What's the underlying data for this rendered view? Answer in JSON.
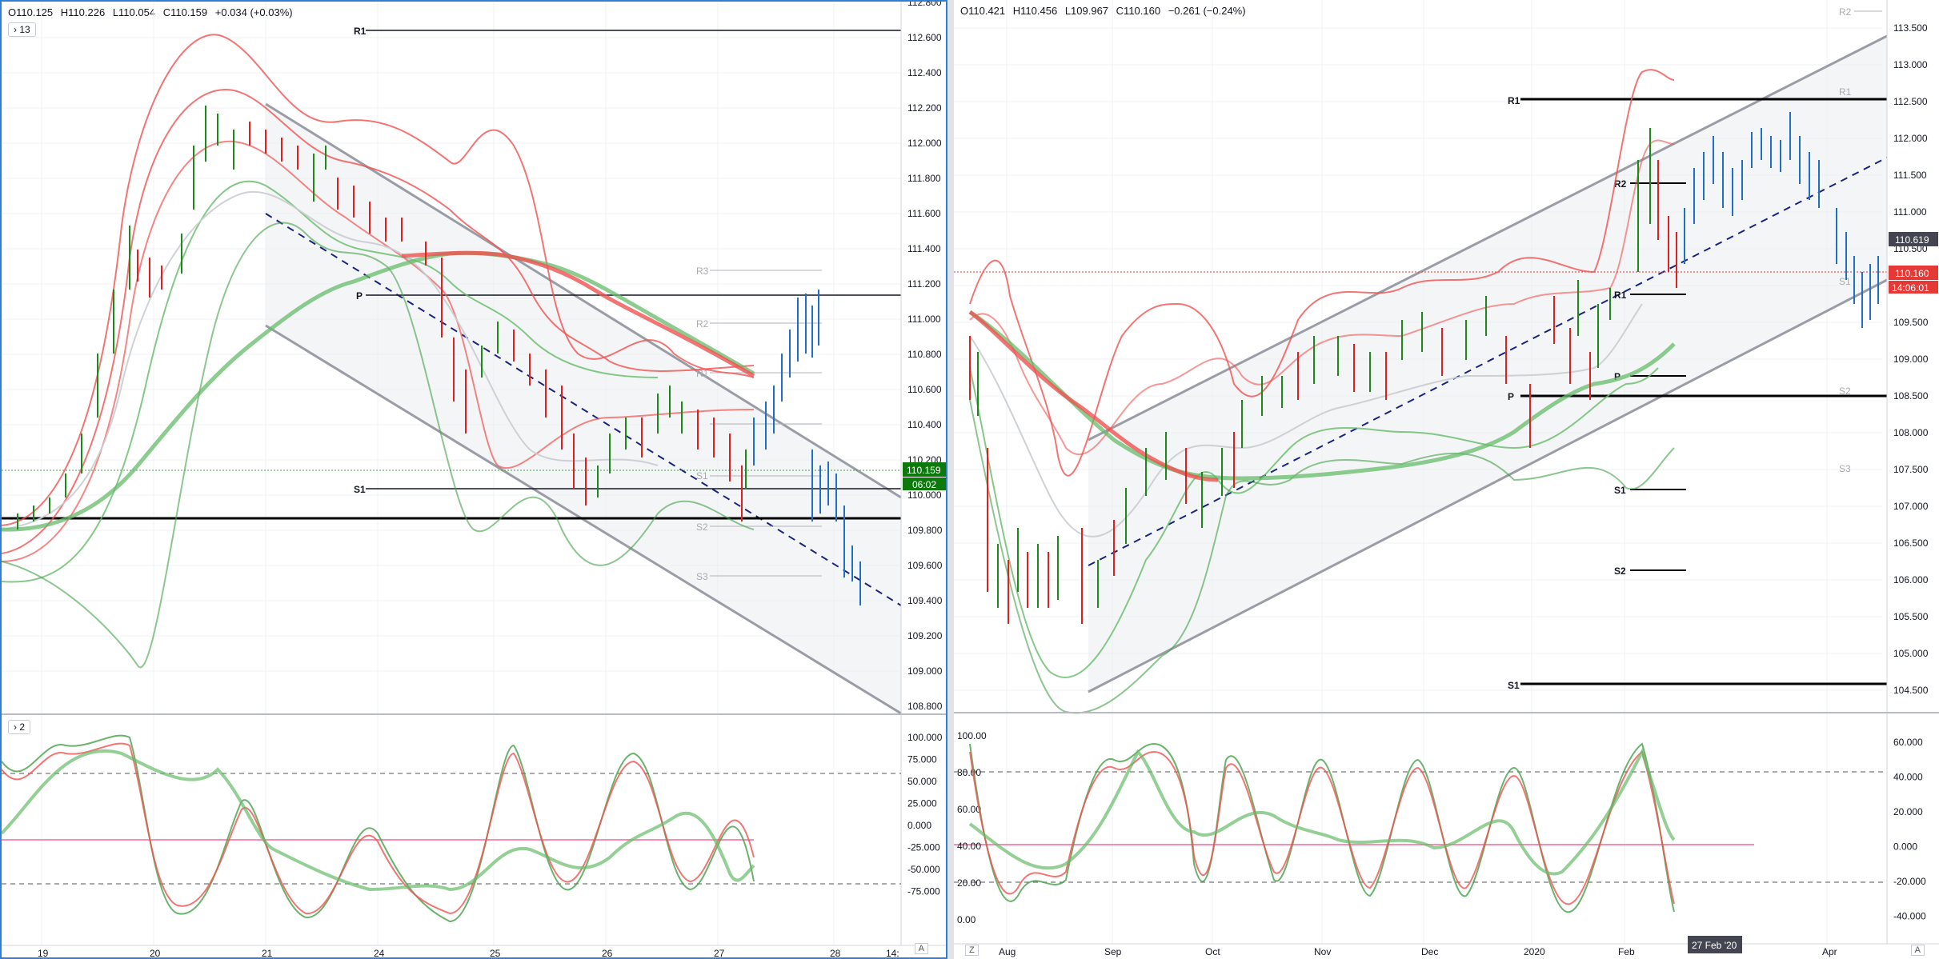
{
  "left_chart": {
    "ohlc": {
      "o": "O110.125",
      "h": "H110.226",
      "l": "L110.054",
      "c": "C110.159",
      "chg": "+0.034 (+0.03%)"
    },
    "main_pill": "13",
    "osc_pill": "2",
    "price_axis": [
      "112.800",
      "112.600",
      "112.400",
      "112.200",
      "112.000",
      "111.800",
      "111.600",
      "111.400",
      "111.200",
      "111.000",
      "110.800",
      "110.600",
      "110.400",
      "110.200",
      "110.000",
      "109.800",
      "109.600",
      "109.400",
      "109.200",
      "109.000",
      "108.800"
    ],
    "price_tag": "110.159",
    "countdown": "06:02",
    "pivots": {
      "r1": "R1",
      "p": "P",
      "s1": "S1",
      "r3": "R3",
      "r2": "R2",
      "r1b": "R1",
      "s1b": "S1",
      "s2": "S2",
      "s3": "S3"
    },
    "osc_axis": [
      "100.000",
      "75.000",
      "50.000",
      "25.000",
      "0.000",
      "-25.000",
      "-50.000",
      "-75.000"
    ],
    "time_axis": [
      "19",
      "20",
      "21",
      "24",
      "25",
      "26",
      "27",
      "28",
      "14:"
    ],
    "corner_btn": "A"
  },
  "right_chart": {
    "ohlc": {
      "o": "O110.421",
      "h": "H110.456",
      "l": "L109.967",
      "c": "C110.160",
      "chg": "−0.261 (−0.24%)"
    },
    "price_axis": [
      "113.500",
      "113.000",
      "112.500",
      "112.000",
      "111.500",
      "111.000",
      "110.500",
      "110.000",
      "109.500",
      "109.000",
      "108.500",
      "108.000",
      "107.500",
      "107.000",
      "106.500",
      "106.000",
      "105.500",
      "105.000",
      "104.500"
    ],
    "price_tag_1": "110.619",
    "price_tag_2": "110.160",
    "countdown": "14:06:01",
    "pivots": {
      "r2top": "R2",
      "r1": "R1",
      "r2": "R2",
      "r1b": "R1",
      "s1top": "S1",
      "p": "P",
      "s2small": "S2",
      "s3small": "S3",
      "s1": "S1",
      "s2": "S2",
      "s1low": "S1",
      "r1small": "R1",
      "pbot": "P"
    },
    "osc_left_axis": [
      "100.00",
      "80.00",
      "60.00",
      "40.00",
      "20.00",
      "0.00"
    ],
    "osc_right_axis": [
      "60.000",
      "40.000",
      "20.000",
      "0.000",
      "-20.000",
      "-40.000"
    ],
    "time_axis": [
      "Aug",
      "Sep",
      "Oct",
      "Nov",
      "Dec",
      "2020",
      "Feb",
      "Apr"
    ],
    "crosshair_date": "27 Feb '20",
    "corner_left": "Z",
    "corner_right": "A"
  },
  "colors": {
    "up": "#1b8a1b",
    "down": "#e02020",
    "blue": "#1f6fc9",
    "green_tag": "#0b7a0b",
    "red_tag": "#e53935",
    "dark_tag": "#434651"
  }
}
